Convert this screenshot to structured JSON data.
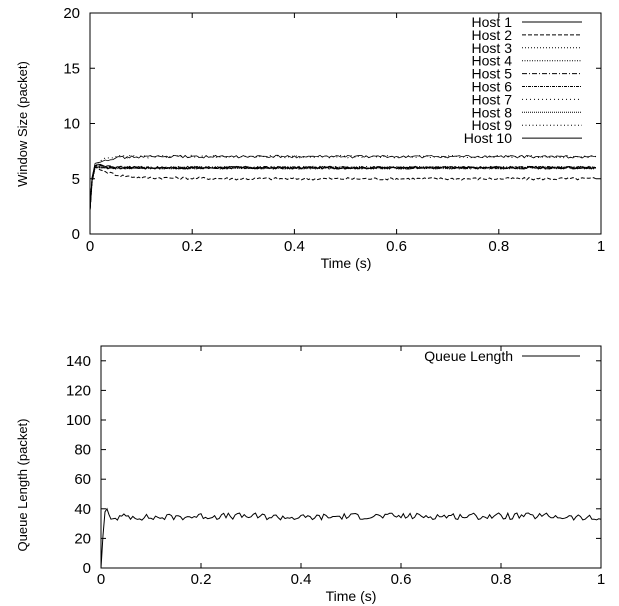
{
  "chart_data": [
    {
      "type": "line",
      "xlabel": "Time (s)",
      "ylabel": "Window Size (packet)",
      "xlim": [
        0,
        1
      ],
      "ylim": [
        0,
        20
      ],
      "xticks": [
        0,
        0.2,
        0.4,
        0.6,
        0.8,
        1
      ],
      "xtick_labels": [
        "0",
        "0.2",
        "0.4",
        "0.6",
        "0.8",
        "1"
      ],
      "yticks": [
        0,
        5,
        10,
        15,
        20
      ],
      "ytick_labels": [
        "0",
        "5",
        "10",
        "15",
        "20"
      ],
      "grid": false,
      "legend_position": "top-right",
      "series": [
        {
          "name": "Host 1",
          "dash": "solid",
          "x": [
            0,
            0.004,
            0.01,
            0.02,
            0.03,
            0.05,
            0.1,
            0.3,
            0.5,
            0.7,
            0.9,
            0.99
          ],
          "values": [
            2.2,
            4.8,
            6.2,
            6.3,
            6.1,
            6.0,
            6.0,
            6.0,
            6.0,
            6.0,
            6.0,
            6.0
          ]
        },
        {
          "name": "Host 2",
          "dash": "dashed",
          "x": [
            0,
            0.004,
            0.01,
            0.02,
            0.04,
            0.06,
            0.1,
            0.3,
            0.5,
            0.7,
            0.9,
            0.99
          ],
          "values": [
            2.2,
            4.6,
            6.1,
            5.8,
            5.5,
            5.3,
            5.1,
            5.0,
            5.0,
            5.0,
            5.0,
            5.0
          ]
        },
        {
          "name": "Host 3",
          "dash": "dotted",
          "x": [
            0,
            0.004,
            0.01,
            0.02,
            0.03,
            0.05,
            0.1,
            0.3,
            0.5,
            0.7,
            0.9,
            0.99
          ],
          "values": [
            2.2,
            4.9,
            6.2,
            6.1,
            6.0,
            6.0,
            6.0,
            6.0,
            6.0,
            6.0,
            6.0,
            6.0
          ]
        },
        {
          "name": "Host 4",
          "dash": "fine-dotted",
          "x": [
            0,
            0.004,
            0.01,
            0.02,
            0.03,
            0.05,
            0.1,
            0.3,
            0.5,
            0.7,
            0.9,
            0.99
          ],
          "values": [
            2.2,
            4.8,
            6.1,
            6.0,
            6.0,
            6.0,
            6.0,
            6.0,
            6.0,
            6.0,
            6.0,
            6.0
          ]
        },
        {
          "name": "Host 5",
          "dash": "dash-dot",
          "x": [
            0,
            0.004,
            0.01,
            0.02,
            0.03,
            0.05,
            0.1,
            0.3,
            0.5,
            0.7,
            0.9,
            0.99
          ],
          "values": [
            2.2,
            5.0,
            6.3,
            6.2,
            6.1,
            6.0,
            6.0,
            6.0,
            6.0,
            6.0,
            6.0,
            6.0
          ]
        },
        {
          "name": "Host 6",
          "dash": "dash-dot-dense",
          "x": [
            0,
            0.004,
            0.01,
            0.02,
            0.03,
            0.05,
            0.1,
            0.3,
            0.5,
            0.7,
            0.9,
            0.99
          ],
          "values": [
            2.2,
            4.7,
            6.0,
            6.0,
            6.0,
            6.0,
            6.0,
            6.0,
            6.0,
            6.0,
            6.0,
            6.0
          ]
        },
        {
          "name": "Host 7",
          "dash": "dot-gap",
          "x": [
            0,
            0.004,
            0.01,
            0.02,
            0.03,
            0.05,
            0.1,
            0.3,
            0.5,
            0.7,
            0.9,
            0.99
          ],
          "values": [
            2.2,
            4.9,
            6.2,
            6.6,
            6.9,
            7.0,
            7.0,
            7.0,
            7.0,
            7.0,
            7.0,
            7.0
          ]
        },
        {
          "name": "Host 8",
          "dash": "dotted-dense",
          "x": [
            0,
            0.004,
            0.01,
            0.02,
            0.03,
            0.05,
            0.1,
            0.3,
            0.5,
            0.7,
            0.9,
            0.99
          ],
          "values": [
            2.2,
            4.8,
            6.1,
            6.0,
            6.0,
            6.0,
            6.0,
            6.0,
            6.0,
            6.0,
            6.0,
            6.0
          ]
        },
        {
          "name": "Host 9",
          "dash": "dotted-sparse",
          "x": [
            0,
            0.004,
            0.01,
            0.02,
            0.03,
            0.05,
            0.1,
            0.3,
            0.5,
            0.7,
            0.9,
            0.99
          ],
          "values": [
            2.2,
            4.8,
            6.2,
            6.1,
            6.0,
            6.0,
            6.0,
            6.0,
            6.0,
            6.0,
            6.0,
            6.0
          ]
        },
        {
          "name": "Host 10",
          "dash": "solid-thin",
          "x": [
            0,
            0.004,
            0.01,
            0.02,
            0.03,
            0.05,
            0.1,
            0.3,
            0.5,
            0.7,
            0.9,
            0.99
          ],
          "values": [
            2.2,
            5.1,
            6.4,
            6.5,
            6.7,
            6.9,
            7.0,
            7.0,
            7.0,
            7.0,
            7.0,
            7.0
          ]
        }
      ]
    },
    {
      "type": "line",
      "xlabel": "Time (s)",
      "ylabel": "Queue Length (packet)",
      "xlim": [
        0,
        1
      ],
      "ylim": [
        0,
        150
      ],
      "xticks": [
        0,
        0.2,
        0.4,
        0.6,
        0.8,
        1
      ],
      "xtick_labels": [
        "0",
        "0.2",
        "0.4",
        "0.6",
        "0.8",
        "1"
      ],
      "yticks": [
        0,
        20,
        40,
        60,
        80,
        100,
        120,
        140
      ],
      "ytick_labels": [
        "0",
        "20",
        "40",
        "60",
        "80",
        "100",
        "120",
        "140"
      ],
      "grid": false,
      "legend_position": "top-right",
      "series": [
        {
          "name": "Queue Length",
          "dash": "solid",
          "x": [
            0,
            0.004,
            0.008,
            0.012,
            0.016,
            0.02,
            0.05,
            0.1,
            0.2,
            0.3,
            0.4,
            0.5,
            0.6,
            0.7,
            0.8,
            0.9,
            1.0
          ],
          "values": [
            0,
            22,
            38,
            40,
            36,
            33,
            35,
            34,
            35,
            35,
            34,
            35,
            35,
            35,
            35,
            35,
            33
          ]
        }
      ]
    }
  ]
}
